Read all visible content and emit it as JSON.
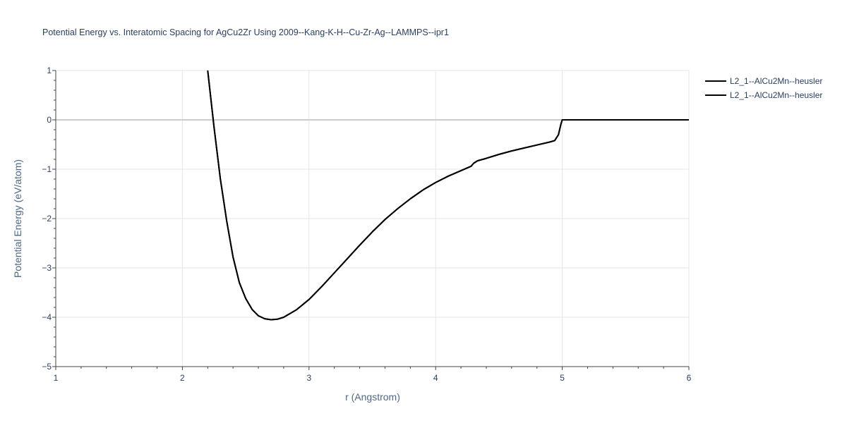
{
  "chart_data": {
    "type": "line",
    "title": "Potential Energy vs. Interatomic Spacing for AgCu2Zr Using 2009--Kang-K-H--Cu-Zr-Ag--LAMMPS--ipr1",
    "xlabel": "r (Angstrom)",
    "ylabel": "Potential Energy (eV/atom)",
    "xlim": [
      1,
      6
    ],
    "ylim": [
      -5,
      1
    ],
    "xticks": [
      1,
      2,
      3,
      4,
      5,
      6
    ],
    "yticks": [
      1,
      0,
      -1,
      -2,
      -3,
      -4,
      -5
    ],
    "ytick_labels": [
      "1",
      "0",
      "−1",
      "−2",
      "−3",
      "−4",
      "−5"
    ],
    "grid": true,
    "legend_position": "top-right",
    "series": [
      {
        "name": "L2_1--AlCu2Mn--heusler",
        "color": "#000000",
        "x": [
          2.2,
          2.25,
          2.3,
          2.35,
          2.4,
          2.45,
          2.5,
          2.55,
          2.6,
          2.65,
          2.7,
          2.75,
          2.8,
          2.9,
          3.0,
          3.1,
          3.2,
          3.3,
          3.4,
          3.5,
          3.6,
          3.7,
          3.8,
          3.9,
          4.0,
          4.1,
          4.2,
          4.28,
          4.3,
          4.33,
          4.4,
          4.5,
          4.6,
          4.7,
          4.8,
          4.9,
          4.94,
          4.97,
          4.99,
          5.0,
          5.2,
          5.5,
          6.0
        ],
        "y": [
          1.0,
          -0.15,
          -1.2,
          -2.05,
          -2.78,
          -3.3,
          -3.62,
          -3.84,
          -3.97,
          -4.03,
          -4.05,
          -4.04,
          -4.0,
          -3.85,
          -3.64,
          -3.38,
          -3.1,
          -2.82,
          -2.54,
          -2.27,
          -2.02,
          -1.8,
          -1.6,
          -1.42,
          -1.27,
          -1.14,
          -1.03,
          -0.94,
          -0.88,
          -0.83,
          -0.78,
          -0.7,
          -0.63,
          -0.57,
          -0.51,
          -0.45,
          -0.42,
          -0.3,
          -0.08,
          0.0,
          0.0,
          0.0,
          0.0
        ]
      },
      {
        "name": "L2_1--AlCu2Mn--heusler",
        "color": "#000000",
        "x": [
          2.2,
          2.25,
          2.3,
          2.35,
          2.4,
          2.45,
          2.5,
          2.55,
          2.6,
          2.65,
          2.7,
          2.75,
          2.8,
          2.9,
          3.0,
          3.1,
          3.2,
          3.3,
          3.4,
          3.5,
          3.6,
          3.7,
          3.8,
          3.9,
          4.0,
          4.1,
          4.2,
          4.28,
          4.3,
          4.33,
          4.4,
          4.5,
          4.6,
          4.7,
          4.8,
          4.9,
          4.94,
          4.97,
          4.99,
          5.0,
          5.2,
          5.5,
          6.0
        ],
        "y": [
          1.0,
          -0.15,
          -1.2,
          -2.05,
          -2.78,
          -3.3,
          -3.62,
          -3.84,
          -3.97,
          -4.03,
          -4.05,
          -4.04,
          -4.0,
          -3.85,
          -3.64,
          -3.38,
          -3.1,
          -2.82,
          -2.54,
          -2.27,
          -2.02,
          -1.8,
          -1.6,
          -1.42,
          -1.27,
          -1.14,
          -1.03,
          -0.94,
          -0.88,
          -0.83,
          -0.78,
          -0.7,
          -0.63,
          -0.57,
          -0.51,
          -0.45,
          -0.42,
          -0.3,
          -0.08,
          0.0,
          0.0,
          0.0,
          0.0
        ]
      }
    ]
  }
}
